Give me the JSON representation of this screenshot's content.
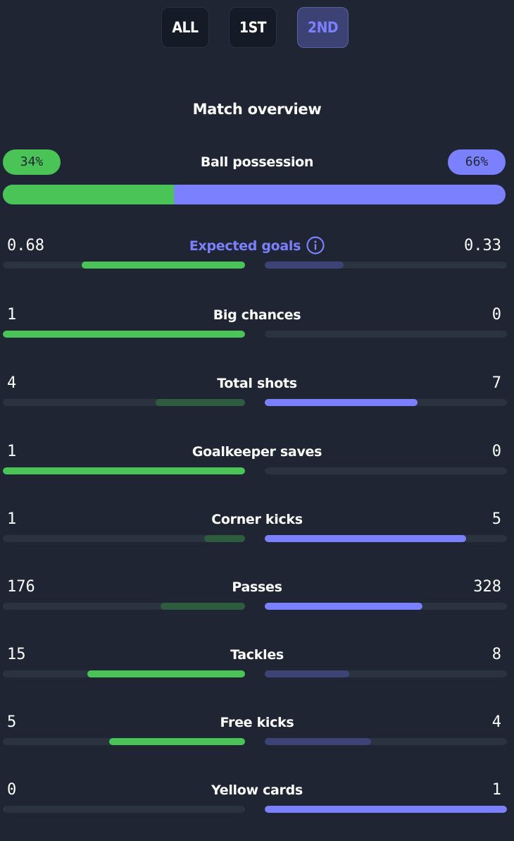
{
  "tabs": [
    {
      "label": "ALL",
      "active": false
    },
    {
      "label": "1ST",
      "active": false
    },
    {
      "label": "2ND",
      "active": true
    }
  ],
  "section_title": "Match overview",
  "possession": {
    "label": "Ball possession",
    "home_label": "34%",
    "away_label": "66%",
    "home_fraction": 0.34,
    "away_fraction": 0.66
  },
  "stats": [
    {
      "name": "Expected goals",
      "home": "0.68",
      "away": "0.33",
      "home_fraction": 0.674,
      "away_fraction": 0.326,
      "home_leads": true,
      "highlight": true,
      "icon": "info-icon"
    },
    {
      "name": "Big chances",
      "home": "1",
      "away": "0",
      "home_fraction": 1.0,
      "away_fraction": 0.0,
      "home_leads": true
    },
    {
      "name": "Total shots",
      "home": "4",
      "away": "7",
      "home_fraction": 0.37,
      "away_fraction": 0.63,
      "home_leads": false
    },
    {
      "name": "Goalkeeper saves",
      "home": "1",
      "away": "0",
      "home_fraction": 1.0,
      "away_fraction": 0.0,
      "home_leads": true
    },
    {
      "name": "Corner kicks",
      "home": "1",
      "away": "5",
      "home_fraction": 0.17,
      "away_fraction": 0.83,
      "home_leads": false
    },
    {
      "name": "Passes",
      "home": "176",
      "away": "328",
      "home_fraction": 0.35,
      "away_fraction": 0.65,
      "home_leads": false
    },
    {
      "name": "Tackles",
      "home": "15",
      "away": "8",
      "home_fraction": 0.65,
      "away_fraction": 0.35,
      "home_leads": true
    },
    {
      "name": "Free kicks",
      "home": "5",
      "away": "4",
      "home_fraction": 0.56,
      "away_fraction": 0.44,
      "home_leads": true
    },
    {
      "name": "Yellow cards",
      "home": "0",
      "away": "1",
      "home_fraction": 0.0,
      "away_fraction": 1.0,
      "home_leads": false
    }
  ],
  "colors": {
    "background": "#1f2532",
    "home_strong": "#4ac457",
    "home_weak": "#2f5b3f",
    "away_strong": "#7b80ff",
    "away_weak": "#3d4475",
    "track": "#2b3240"
  }
}
